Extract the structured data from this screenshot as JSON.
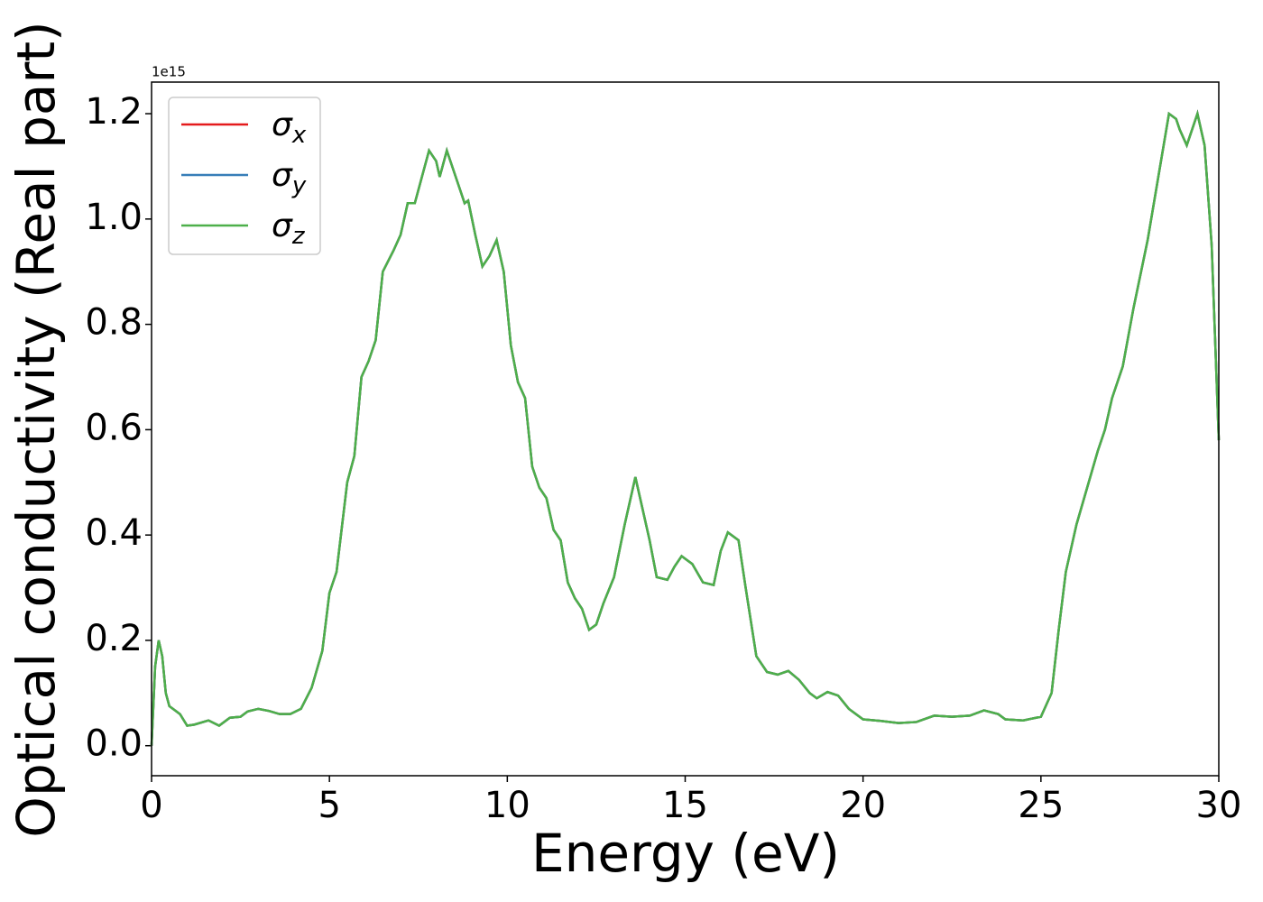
{
  "chart_data": {
    "type": "line",
    "xlabel": "Energy (eV)",
    "ylabel": "Optical conductivity (Real part)",
    "y_offset_label": "1e15",
    "x": [
      0,
      0.1,
      0.2,
      0.3,
      0.4,
      0.5,
      0.7,
      0.8,
      1.0,
      1.2,
      1.6,
      1.9,
      2.2,
      2.5,
      2.7,
      3.0,
      3.3,
      3.6,
      3.9,
      4.2,
      4.5,
      4.8,
      5.0,
      5.2,
      5.5,
      5.7,
      5.9,
      6.1,
      6.3,
      6.5,
      6.8,
      7.0,
      7.2,
      7.4,
      7.6,
      7.8,
      8.0,
      8.1,
      8.3,
      8.5,
      8.8,
      8.9,
      9.1,
      9.3,
      9.5,
      9.7,
      9.9,
      10.1,
      10.3,
      10.5,
      10.7,
      10.9,
      11.1,
      11.3,
      11.5,
      11.7,
      11.9,
      12.1,
      12.3,
      12.5,
      12.7,
      13.0,
      13.3,
      13.6,
      13.8,
      14.0,
      14.2,
      14.5,
      14.7,
      14.9,
      15.2,
      15.5,
      15.8,
      16.0,
      16.2,
      16.5,
      16.7,
      17.0,
      17.3,
      17.6,
      17.9,
      18.2,
      18.5,
      18.7,
      19.0,
      19.3,
      19.6,
      20.0,
      20.5,
      21.0,
      21.5,
      22.0,
      22.5,
      23.0,
      23.4,
      23.8,
      24.0,
      24.5,
      25.0,
      25.3,
      25.5,
      25.7,
      26.0,
      26.3,
      26.6,
      26.8,
      27.0,
      27.3,
      27.6,
      28.0,
      28.3,
      28.6,
      28.8,
      28.9,
      29.1,
      29.4,
      29.6,
      29.8,
      30.0
    ],
    "series": [
      {
        "name": "σx",
        "color": "#e41a1c",
        "values": [
          0,
          0.15,
          0.2,
          0.17,
          0.1,
          0.075,
          0.065,
          0.06,
          0.038,
          0.04,
          0.048,
          0.038,
          0.053,
          0.055,
          0.065,
          0.07,
          0.066,
          0.06,
          0.06,
          0.07,
          0.11,
          0.18,
          0.29,
          0.33,
          0.5,
          0.55,
          0.7,
          0.73,
          0.77,
          0.9,
          0.94,
          0.97,
          1.03,
          1.03,
          1.08,
          1.13,
          1.11,
          1.08,
          1.13,
          1.09,
          1.03,
          1.035,
          0.97,
          0.91,
          0.93,
          0.96,
          0.9,
          0.76,
          0.69,
          0.66,
          0.53,
          0.49,
          0.47,
          0.41,
          0.39,
          0.31,
          0.28,
          0.26,
          0.22,
          0.23,
          0.27,
          0.32,
          0.42,
          0.51,
          0.45,
          0.39,
          0.32,
          0.315,
          0.34,
          0.36,
          0.345,
          0.31,
          0.305,
          0.37,
          0.405,
          0.39,
          0.3,
          0.17,
          0.14,
          0.135,
          0.142,
          0.125,
          0.1,
          0.09,
          0.102,
          0.095,
          0.07,
          0.05,
          0.047,
          0.043,
          0.045,
          0.057,
          0.055,
          0.057,
          0.067,
          0.06,
          0.05,
          0.048,
          0.055,
          0.1,
          0.22,
          0.33,
          0.42,
          0.49,
          0.56,
          0.6,
          0.66,
          0.72,
          0.83,
          0.96,
          1.08,
          1.2,
          1.19,
          1.17,
          1.14,
          1.2,
          1.14,
          0.95,
          0.58
        ]
      },
      {
        "name": "σy",
        "color": "#377eb8",
        "values": [
          0,
          0.15,
          0.2,
          0.17,
          0.1,
          0.075,
          0.065,
          0.06,
          0.038,
          0.04,
          0.048,
          0.038,
          0.053,
          0.055,
          0.065,
          0.07,
          0.066,
          0.06,
          0.06,
          0.07,
          0.11,
          0.18,
          0.29,
          0.33,
          0.5,
          0.55,
          0.7,
          0.73,
          0.77,
          0.9,
          0.94,
          0.97,
          1.03,
          1.03,
          1.08,
          1.13,
          1.11,
          1.08,
          1.13,
          1.09,
          1.03,
          1.035,
          0.97,
          0.91,
          0.93,
          0.96,
          0.9,
          0.76,
          0.69,
          0.66,
          0.53,
          0.49,
          0.47,
          0.41,
          0.39,
          0.31,
          0.28,
          0.26,
          0.22,
          0.23,
          0.27,
          0.32,
          0.42,
          0.51,
          0.45,
          0.39,
          0.32,
          0.315,
          0.34,
          0.36,
          0.345,
          0.31,
          0.305,
          0.37,
          0.405,
          0.39,
          0.3,
          0.17,
          0.14,
          0.135,
          0.142,
          0.125,
          0.1,
          0.09,
          0.102,
          0.095,
          0.07,
          0.05,
          0.047,
          0.043,
          0.045,
          0.057,
          0.055,
          0.057,
          0.067,
          0.06,
          0.05,
          0.048,
          0.055,
          0.1,
          0.22,
          0.33,
          0.42,
          0.49,
          0.56,
          0.6,
          0.66,
          0.72,
          0.83,
          0.96,
          1.08,
          1.2,
          1.19,
          1.17,
          1.14,
          1.2,
          1.14,
          0.95,
          0.58
        ]
      },
      {
        "name": "σz",
        "color": "#4daf4a",
        "values": [
          0,
          0.15,
          0.2,
          0.17,
          0.1,
          0.075,
          0.065,
          0.06,
          0.038,
          0.04,
          0.048,
          0.038,
          0.053,
          0.055,
          0.065,
          0.07,
          0.066,
          0.06,
          0.06,
          0.07,
          0.11,
          0.18,
          0.29,
          0.33,
          0.5,
          0.55,
          0.7,
          0.73,
          0.77,
          0.9,
          0.94,
          0.97,
          1.03,
          1.03,
          1.08,
          1.13,
          1.11,
          1.08,
          1.13,
          1.09,
          1.03,
          1.035,
          0.97,
          0.91,
          0.93,
          0.96,
          0.9,
          0.76,
          0.69,
          0.66,
          0.53,
          0.49,
          0.47,
          0.41,
          0.39,
          0.31,
          0.28,
          0.26,
          0.22,
          0.23,
          0.27,
          0.32,
          0.42,
          0.51,
          0.45,
          0.39,
          0.32,
          0.315,
          0.34,
          0.36,
          0.345,
          0.31,
          0.305,
          0.37,
          0.405,
          0.39,
          0.3,
          0.17,
          0.14,
          0.135,
          0.142,
          0.125,
          0.1,
          0.09,
          0.102,
          0.095,
          0.07,
          0.05,
          0.047,
          0.043,
          0.045,
          0.057,
          0.055,
          0.057,
          0.067,
          0.06,
          0.05,
          0.048,
          0.055,
          0.1,
          0.22,
          0.33,
          0.42,
          0.49,
          0.56,
          0.6,
          0.66,
          0.72,
          0.83,
          0.96,
          1.08,
          1.2,
          1.19,
          1.17,
          1.14,
          1.2,
          1.14,
          0.95,
          0.58
        ]
      }
    ],
    "xlim": [
      0,
      30
    ],
    "xticks": [
      0,
      5,
      10,
      15,
      20,
      25,
      30
    ],
    "ylim": [
      -0.057,
      1.26
    ],
    "yticks": [
      {
        "value": 0,
        "label": "0.0"
      },
      0.2,
      0.4,
      0.6,
      0.8,
      {
        "value": 1,
        "label": "1.0"
      },
      1.2
    ],
    "grid": false,
    "legend": "upper left"
  }
}
